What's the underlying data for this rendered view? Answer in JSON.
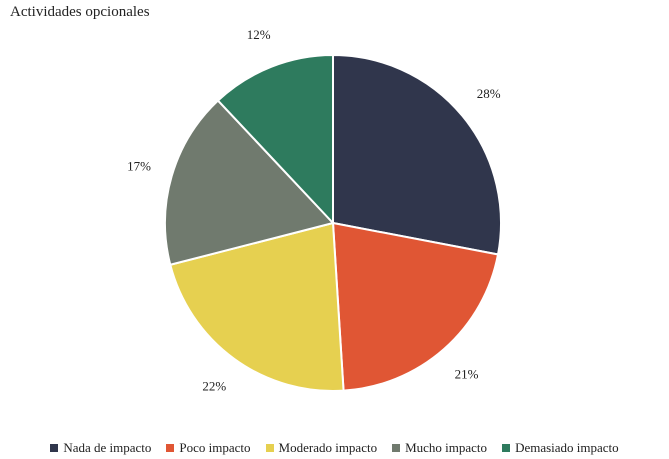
{
  "chart_data": {
    "type": "pie",
    "title": "Actividades opcionales",
    "categories": [
      "Nada de impacto",
      "Poco impacto",
      "Moderado impacto",
      "Mucho impacto",
      "Demasiado impacto"
    ],
    "values": [
      28,
      21,
      22,
      17,
      12
    ],
    "value_labels": [
      "28%",
      "21%",
      "22%",
      "17%",
      "12%"
    ],
    "colors": [
      "#30364c",
      "#e05634",
      "#e6d050",
      "#707a6e",
      "#2e7b5e"
    ],
    "legend_position": "bottom",
    "start": "top",
    "direction": "clockwise"
  }
}
